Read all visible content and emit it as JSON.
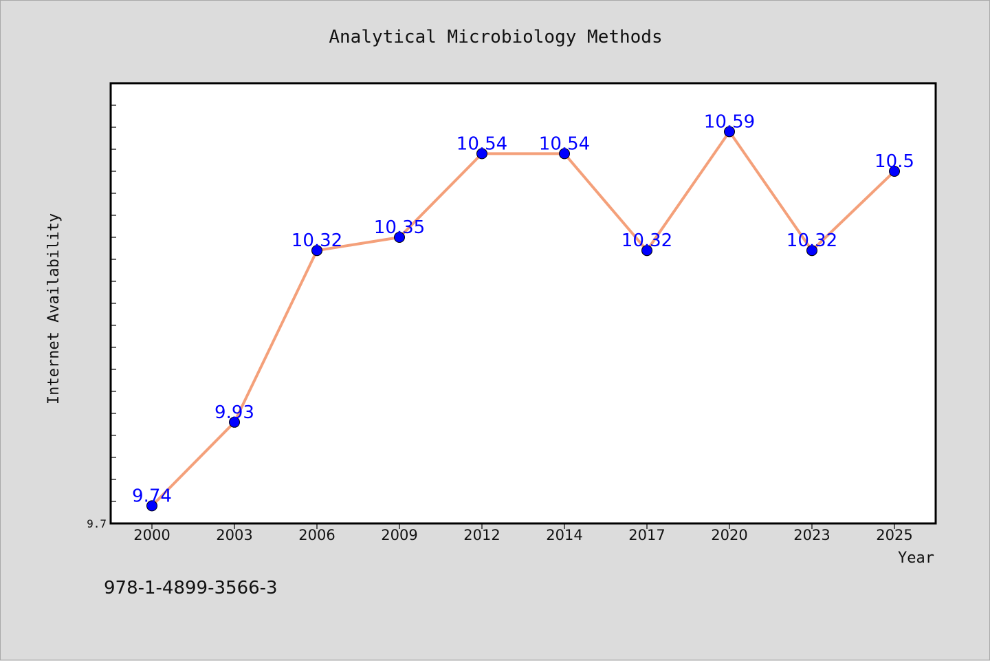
{
  "chart_data": {
    "type": "line",
    "title": "Analytical Microbiology Methods",
    "xlabel": "Year",
    "ylabel": "Internet Availability",
    "categories": [
      "2000",
      "2003",
      "2006",
      "2009",
      "2012",
      "2014",
      "2017",
      "2020",
      "2023",
      "2025"
    ],
    "series": [
      {
        "values": [
          9.74,
          9.93,
          10.32,
          10.35,
          10.54,
          10.54,
          10.32,
          10.59,
          10.32,
          10.5
        ],
        "line_color": "#f4a07a",
        "marker_color": "#0000ff"
      }
    ],
    "ytick_labels": [
      "9.7"
    ],
    "ylim": [
      9.7,
      10.7
    ],
    "grid": false,
    "data_labels": true
  },
  "footer": {
    "isbn": "978-1-4899-3566-3"
  }
}
